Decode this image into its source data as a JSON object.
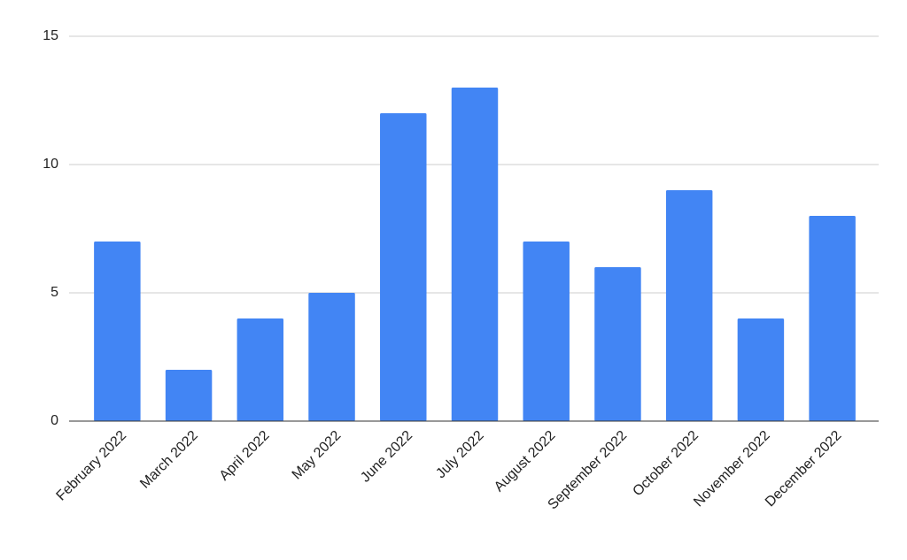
{
  "chart_data": {
    "type": "bar",
    "categories": [
      "February 2022",
      "March 2022",
      "April 2022",
      "May 2022",
      "June 2022",
      "July 2022",
      "August 2022",
      "September 2022",
      "October 2022",
      "November 2022",
      "December 2022"
    ],
    "values": [
      7,
      2,
      4,
      5,
      12,
      13,
      7,
      6,
      9,
      4,
      8
    ],
    "color": "#4285f4",
    "ylim": [
      0,
      15
    ],
    "yticks": [
      0,
      5,
      10,
      15
    ],
    "grid": true
  }
}
